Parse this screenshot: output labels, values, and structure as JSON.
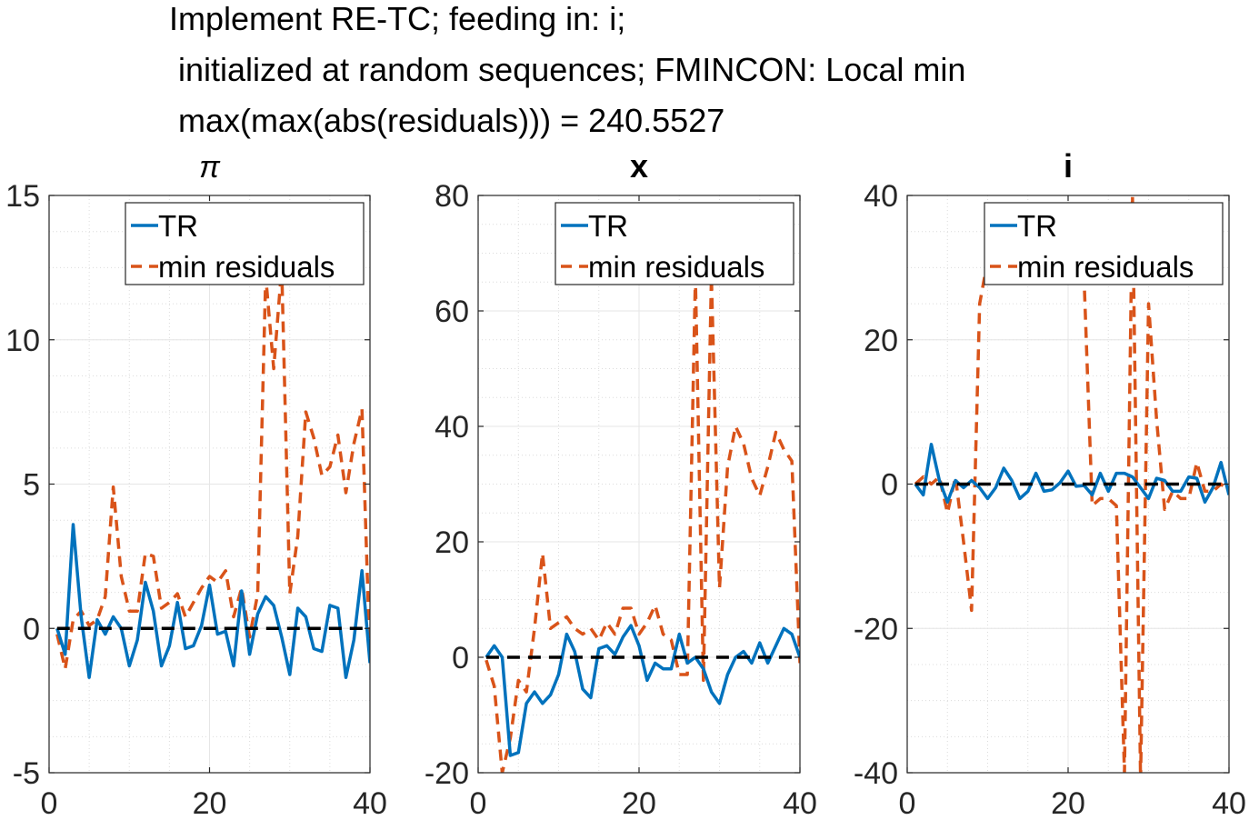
{
  "figure_title": {
    "line1": "Implement RE-TC; feeding in: i;",
    "line2": " initialized at random sequences; FMINCON: Local min",
    "line3": " max(max(abs(residuals))) = 240.5527"
  },
  "colors": {
    "tr": "#0072BD",
    "min_residuals": "#D95319",
    "zero_line": "#000000",
    "grid": "#dcdcdc"
  },
  "chart_data": [
    {
      "type": "line",
      "title": "π",
      "title_bold": false,
      "xlim": [
        0,
        40
      ],
      "ylim": [
        -5,
        15
      ],
      "xticks": [
        0,
        20,
        40
      ],
      "yticks": [
        -5,
        0,
        5,
        10,
        15
      ],
      "legend": {
        "placement": "top-right",
        "entries": [
          "TR",
          "min residuals"
        ]
      },
      "grid": "minor",
      "zero_line": true,
      "series": [
        {
          "name": "TR",
          "style": "solid",
          "x": [
            1,
            2,
            3,
            4,
            5,
            6,
            7,
            8,
            9,
            10,
            11,
            12,
            13,
            14,
            15,
            16,
            17,
            18,
            19,
            20,
            21,
            22,
            23,
            24,
            25,
            26,
            27,
            28,
            29,
            30,
            31,
            32,
            33,
            34,
            35,
            36,
            37,
            38,
            39,
            40
          ],
          "y": [
            0,
            -0.9,
            3.6,
            0.4,
            -1.7,
            0.3,
            -0.2,
            0.4,
            0,
            -1.3,
            -0.4,
            1.6,
            0.6,
            -1.3,
            -0.6,
            0.9,
            -0.7,
            -0.6,
            0.1,
            1.5,
            -0.2,
            -0.1,
            -1.3,
            1.3,
            -0.9,
            0.5,
            1.1,
            0.8,
            -0.3,
            -1.6,
            0.7,
            0.4,
            -0.7,
            -0.8,
            0.8,
            0.7,
            -1.7,
            -0.4,
            2.0,
            -1.2
          ]
        },
        {
          "name": "min residuals",
          "style": "dashed",
          "x": [
            1,
            2,
            3,
            4,
            5,
            6,
            7,
            8,
            9,
            10,
            11,
            12,
            13,
            14,
            15,
            16,
            17,
            18,
            19,
            20,
            21,
            22,
            23,
            24,
            25,
            26,
            27,
            28,
            29,
            30,
            31,
            32,
            33,
            34,
            35,
            36,
            37,
            38,
            39,
            40
          ],
          "y": [
            -0.2,
            -1.4,
            0.3,
            0.6,
            0.1,
            0.3,
            1.1,
            4.9,
            1.8,
            0.6,
            0.6,
            2.6,
            2.5,
            0.7,
            0.9,
            1.2,
            0.4,
            0.9,
            1.4,
            1.8,
            1.6,
            2.0,
            0.4,
            1.4,
            -0.3,
            1.2,
            12.2,
            9.0,
            12.5,
            1.2,
            3.2,
            7.5,
            6.6,
            5.3,
            5.6,
            6.7,
            4.7,
            6.4,
            7.6,
            -1.1
          ]
        },
        {
          "name": "",
          "style": "zero",
          "x": [
            1,
            40
          ],
          "y": [
            0,
            0
          ]
        }
      ]
    },
    {
      "type": "line",
      "title": "x",
      "title_bold": true,
      "xlim": [
        0,
        40
      ],
      "ylim": [
        -20,
        80
      ],
      "xticks": [
        0,
        20,
        40
      ],
      "yticks": [
        -20,
        0,
        20,
        40,
        60,
        80
      ],
      "legend": {
        "placement": "top-right",
        "entries": [
          "TR",
          "min residuals"
        ]
      },
      "grid": "minor",
      "zero_line": true,
      "series": [
        {
          "name": "TR",
          "style": "solid",
          "x": [
            1,
            2,
            3,
            4,
            5,
            6,
            7,
            8,
            9,
            10,
            11,
            12,
            13,
            14,
            15,
            16,
            17,
            18,
            19,
            20,
            21,
            22,
            23,
            24,
            25,
            26,
            27,
            28,
            29,
            30,
            31,
            32,
            33,
            34,
            35,
            36,
            37,
            38,
            39,
            40
          ],
          "y": [
            0,
            2,
            0,
            -17,
            -16.5,
            -8,
            -6,
            -8,
            -6.5,
            -3,
            4,
            1,
            -5.5,
            -7,
            1.5,
            2,
            0.5,
            3.5,
            5.5,
            2,
            -4,
            -1,
            -2,
            -2,
            4,
            -1,
            0,
            -2,
            -6,
            -8,
            -3,
            0,
            1,
            -1,
            2.5,
            -1,
            2,
            5,
            4,
            0
          ]
        },
        {
          "name": "min residuals",
          "style": "dashed",
          "x": [
            1,
            2,
            3,
            4,
            5,
            6,
            7,
            8,
            9,
            10,
            11,
            12,
            13,
            14,
            15,
            16,
            17,
            18,
            19,
            20,
            21,
            22,
            23,
            24,
            25,
            26,
            27,
            28,
            29,
            30,
            31,
            32,
            33,
            34,
            35,
            36,
            37,
            38,
            39,
            40
          ],
          "y": [
            -0.5,
            -5,
            -20,
            -14,
            -4,
            -6,
            5,
            18,
            5,
            6,
            7,
            5,
            4,
            5,
            3,
            6,
            4,
            8.5,
            8.5,
            4,
            6,
            9,
            4,
            3,
            -3,
            -3,
            66,
            -4,
            66,
            12,
            33,
            40,
            37,
            31,
            28,
            33,
            39,
            36,
            34,
            -1
          ]
        },
        {
          "name": "",
          "style": "zero",
          "x": [
            1,
            40
          ],
          "y": [
            0,
            0
          ]
        }
      ]
    },
    {
      "type": "line",
      "title": "i",
      "title_bold": true,
      "xlim": [
        0,
        40
      ],
      "ylim": [
        -40,
        40
      ],
      "xticks": [
        0,
        20,
        40
      ],
      "yticks": [
        -40,
        -20,
        0,
        20,
        40
      ],
      "legend": {
        "placement": "top-right",
        "entries": [
          "TR",
          "min residuals"
        ]
      },
      "grid": "minor",
      "zero_line": true,
      "series": [
        {
          "name": "TR",
          "style": "solid",
          "x": [
            1,
            2,
            3,
            4,
            5,
            6,
            7,
            8,
            9,
            10,
            11,
            12,
            13,
            14,
            15,
            16,
            17,
            18,
            19,
            20,
            21,
            22,
            23,
            24,
            25,
            26,
            27,
            28,
            29,
            30,
            31,
            32,
            33,
            34,
            35,
            36,
            37,
            38,
            39,
            40
          ],
          "y": [
            0,
            -1.5,
            5.5,
            0.5,
            -2.5,
            0.5,
            -0.5,
            0.5,
            -0.5,
            -2,
            -0.5,
            2.2,
            0.5,
            -2,
            -1,
            1.5,
            -1,
            -0.8,
            0.2,
            1.8,
            -0.3,
            -0.2,
            -1.5,
            1.5,
            -1,
            1.5,
            1.5,
            1,
            -0.5,
            -2,
            0.8,
            0.5,
            -1,
            -1,
            1,
            0.8,
            -2.5,
            -0.5,
            3,
            -1.5
          ]
        },
        {
          "name": "min residuals",
          "style": "dashed",
          "x": [
            1,
            2,
            3,
            4,
            5,
            6,
            7,
            8,
            9,
            10,
            11,
            12,
            13,
            14,
            15,
            16,
            17,
            18,
            19,
            20,
            21,
            22,
            23,
            24,
            25,
            26,
            27,
            28,
            29,
            30,
            31,
            32,
            33,
            34,
            35,
            36,
            37,
            38,
            39,
            40
          ],
          "y": [
            0,
            1,
            0,
            1,
            -4,
            1,
            -8,
            -17.5,
            25,
            31,
            31,
            30,
            29,
            31,
            30,
            29,
            29,
            28,
            28,
            29,
            31,
            28,
            -3,
            -2,
            -2,
            -3,
            -40,
            40,
            -41,
            25,
            9,
            -3.5,
            -1,
            -2,
            -2,
            3,
            -1,
            -1,
            0,
            -1
          ]
        },
        {
          "name": "",
          "style": "zero",
          "x": [
            1,
            40
          ],
          "y": [
            0,
            0
          ]
        }
      ]
    }
  ]
}
